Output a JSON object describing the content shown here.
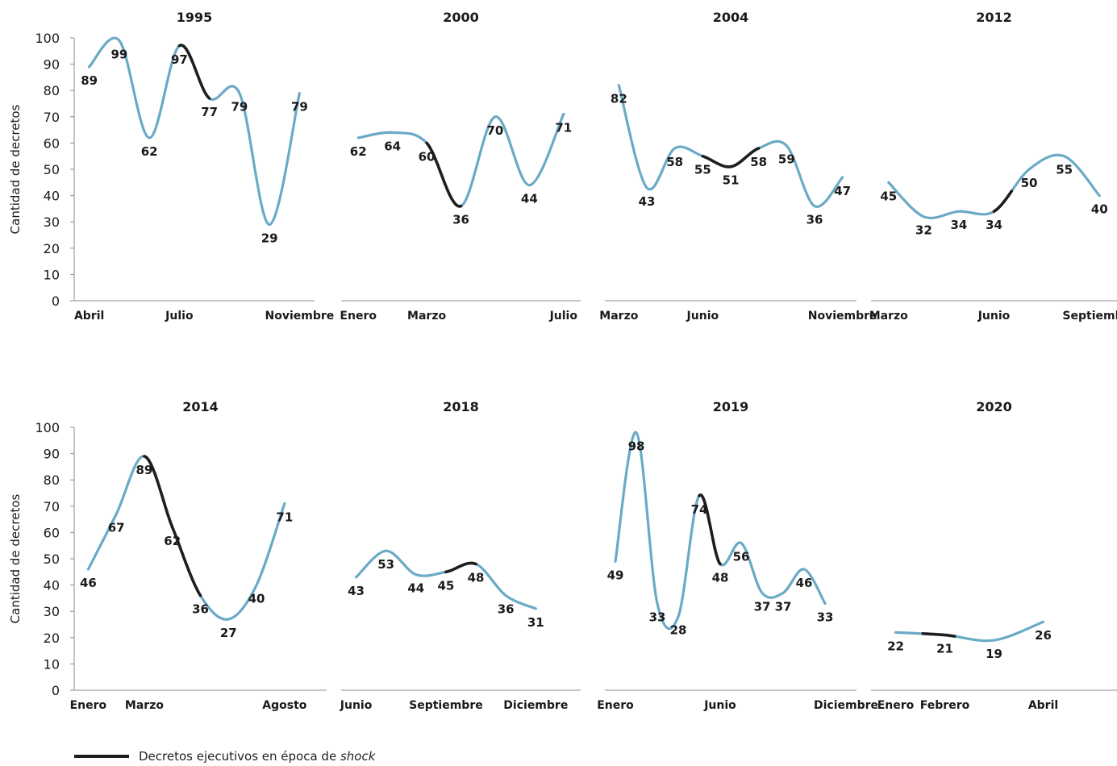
{
  "y_axis_label": "Cantidad de decretos",
  "colors": {
    "normal": "#6aaac6",
    "shock": "#1e1e1e",
    "axis": "#8c8c8c",
    "text": "#1a1a1a"
  },
  "legend": {
    "label_prefix": "Decretos ejecutivos en época de ",
    "label_emphasis": "shock"
  },
  "chart_data": [
    {
      "type": "line",
      "title": "1995",
      "ylim": [
        0,
        100
      ],
      "yticks": [
        0,
        10,
        20,
        30,
        40,
        50,
        60,
        70,
        80,
        90,
        100
      ],
      "x_start": 0,
      "x_end": 7,
      "points": [
        {
          "x": 0.5,
          "y": 89,
          "label": "89"
        },
        {
          "x": 1.5,
          "y": 99,
          "label": "99"
        },
        {
          "x": 2.5,
          "y": 62,
          "label": "62"
        },
        {
          "x": 3.5,
          "y": 97,
          "label": "97"
        },
        {
          "x": 4.5,
          "y": 77,
          "label": "77"
        },
        {
          "x": 5.5,
          "y": 79,
          "label": "79"
        },
        {
          "x": 6.5,
          "y": 29,
          "label": "29"
        },
        {
          "x": 7.5,
          "y": 79,
          "label": "79"
        }
      ],
      "ticks": [
        {
          "x": 0.5,
          "label": "Abril"
        },
        {
          "x": 3.5,
          "label": "Julio"
        },
        {
          "x": 7.5,
          "label": "Noviembre"
        }
      ],
      "shock_segments": [
        [
          3,
          4
        ]
      ]
    },
    {
      "type": "line",
      "title": "2000",
      "ylim": [
        0,
        100
      ],
      "x_start": 0,
      "x_end": 6,
      "points": [
        {
          "x": 0.5,
          "y": 62,
          "label": "62"
        },
        {
          "x": 1.5,
          "y": 64,
          "label": "64"
        },
        {
          "x": 2.5,
          "y": 60,
          "label": "60"
        },
        {
          "x": 3.5,
          "y": 36,
          "label": "36"
        },
        {
          "x": 4.5,
          "y": 70,
          "label": "70"
        },
        {
          "x": 5.5,
          "y": 44,
          "label": "44"
        },
        {
          "x": 6.5,
          "y": 71,
          "label": "71"
        }
      ],
      "ticks": [
        {
          "x": 0.5,
          "label": "Enero"
        },
        {
          "x": 2.5,
          "label": "Marzo"
        },
        {
          "x": 6.5,
          "label": "Julio"
        }
      ],
      "shock_segments": [
        [
          2,
          3
        ]
      ]
    },
    {
      "type": "line",
      "title": "2004",
      "ylim": [
        0,
        100
      ],
      "x_start": 0,
      "x_end": 8,
      "points": [
        {
          "x": 0.5,
          "y": 82,
          "label": "82"
        },
        {
          "x": 1.5,
          "y": 43,
          "label": "43"
        },
        {
          "x": 2.5,
          "y": 58,
          "label": "58"
        },
        {
          "x": 3.5,
          "y": 55,
          "label": "55"
        },
        {
          "x": 4.5,
          "y": 51,
          "label": "51"
        },
        {
          "x": 5.5,
          "y": 58,
          "label": "58"
        },
        {
          "x": 6.5,
          "y": 59,
          "label": "59"
        },
        {
          "x": 7.5,
          "y": 36,
          "label": "36"
        },
        {
          "x": 8.5,
          "y": 47,
          "label": "47"
        }
      ],
      "ticks": [
        {
          "x": 0.5,
          "label": "Marzo"
        },
        {
          "x": 3.5,
          "label": "Junio"
        },
        {
          "x": 8.5,
          "label": "Noviembre"
        }
      ],
      "shock_segments": [
        [
          3,
          4
        ],
        [
          4,
          5
        ]
      ]
    },
    {
      "type": "line",
      "title": "2012",
      "ylim": [
        0,
        100
      ],
      "x_start": 0,
      "x_end": 6,
      "points": [
        {
          "x": 0.5,
          "y": 45,
          "label": "45"
        },
        {
          "x": 1.5,
          "y": 32,
          "label": "32"
        },
        {
          "x": 2.5,
          "y": 34,
          "label": "34"
        },
        {
          "x": 3.5,
          "y": 34,
          "label": "34"
        },
        {
          "x": 4.5,
          "y": 50,
          "label": "50"
        },
        {
          "x": 5.5,
          "y": 55,
          "label": "55"
        },
        {
          "x": 6.5,
          "y": 40,
          "label": "40"
        }
      ],
      "ticks": [
        {
          "x": 0.5,
          "label": "Marzo"
        },
        {
          "x": 3.5,
          "label": "Junio"
        },
        {
          "x": 6.5,
          "label": "Septiembre"
        }
      ],
      "shock_segments": [
        [
          3,
          3.5
        ]
      ]
    },
    {
      "type": "line",
      "title": "2014",
      "ylim": [
        0,
        100
      ],
      "yticks": [
        0,
        10,
        20,
        30,
        40,
        50,
        60,
        70,
        80,
        90,
        100
      ],
      "x_start": 0,
      "x_end": 8,
      "points": [
        {
          "x": 0.5,
          "y": 46,
          "label": "46"
        },
        {
          "x": 1.5,
          "y": 67,
          "label": "67"
        },
        {
          "x": 2.5,
          "y": 89,
          "label": "89"
        },
        {
          "x": 3.5,
          "y": 62,
          "label": "62"
        },
        {
          "x": 4.5,
          "y": 36,
          "label": "36"
        },
        {
          "x": 5.5,
          "y": 27,
          "label": "27"
        },
        {
          "x": 6.5,
          "y": 40,
          "label": "40"
        },
        {
          "x": 7.5,
          "y": 71,
          "label": "71"
        }
      ],
      "ticks": [
        {
          "x": 0.5,
          "label": "Enero"
        },
        {
          "x": 2.5,
          "label": "Marzo"
        },
        {
          "x": 7.5,
          "label": "Agosto"
        }
      ],
      "shock_segments": [
        [
          2,
          3
        ],
        [
          3,
          4
        ]
      ]
    },
    {
      "type": "line",
      "title": "2018",
      "ylim": [
        0,
        100
      ],
      "x_start": 0,
      "x_end": 7,
      "points": [
        {
          "x": 0.5,
          "y": 43,
          "label": "43"
        },
        {
          "x": 1.5,
          "y": 53,
          "label": "53"
        },
        {
          "x": 2.5,
          "y": 44,
          "label": "44"
        },
        {
          "x": 3.5,
          "y": 45,
          "label": "45"
        },
        {
          "x": 4.5,
          "y": 48,
          "label": "48"
        },
        {
          "x": 5.5,
          "y": 36,
          "label": "36"
        },
        {
          "x": 6.5,
          "y": 31,
          "label": "31"
        }
      ],
      "ticks": [
        {
          "x": 0.5,
          "label": "Junio"
        },
        {
          "x": 3.5,
          "label": "Septiembre"
        },
        {
          "x": 6.5,
          "label": "Diciembre"
        }
      ],
      "shock_segments": [
        [
          3,
          4
        ]
      ]
    },
    {
      "type": "line",
      "title": "2019",
      "ylim": [
        0,
        100
      ],
      "x_start": 0,
      "x_end": 11,
      "points": [
        {
          "x": 0.5,
          "y": 49,
          "label": "49"
        },
        {
          "x": 1.5,
          "y": 98,
          "label": "98"
        },
        {
          "x": 2.5,
          "y": 33,
          "label": "33"
        },
        {
          "x": 3.5,
          "y": 28,
          "label": "28"
        },
        {
          "x": 4.5,
          "y": 74,
          "label": "74"
        },
        {
          "x": 5.5,
          "y": 48,
          "label": "48"
        },
        {
          "x": 6.5,
          "y": 56,
          "label": "56"
        },
        {
          "x": 7.5,
          "y": 37,
          "label": "37"
        },
        {
          "x": 8.5,
          "y": 37,
          "label": "37"
        },
        {
          "x": 9.5,
          "y": 46,
          "label": "46"
        },
        {
          "x": 10.5,
          "y": 33,
          "label": "33"
        }
      ],
      "ticks": [
        {
          "x": 0.5,
          "label": "Enero"
        },
        {
          "x": 5.5,
          "label": "Junio"
        },
        {
          "x": 11.5,
          "label": "Diciembre"
        }
      ],
      "shock_segments": [
        [
          4,
          5
        ]
      ]
    },
    {
      "type": "line",
      "title": "2020",
      "ylim": [
        0,
        100
      ],
      "x_start": 0,
      "x_end": 4,
      "points": [
        {
          "x": 0.5,
          "y": 22,
          "label": "22"
        },
        {
          "x": 1.5,
          "y": 21,
          "label": "21"
        },
        {
          "x": 2.5,
          "y": 19,
          "label": "19"
        },
        {
          "x": 3.5,
          "y": 26,
          "label": "26"
        }
      ],
      "ticks": [
        {
          "x": 0.5,
          "label": "Enero"
        },
        {
          "x": 1.5,
          "label": "Febrero"
        },
        {
          "x": 3.5,
          "label": "Abril"
        }
      ],
      "shock_segments": [
        [
          0.6,
          1.2
        ]
      ]
    }
  ]
}
